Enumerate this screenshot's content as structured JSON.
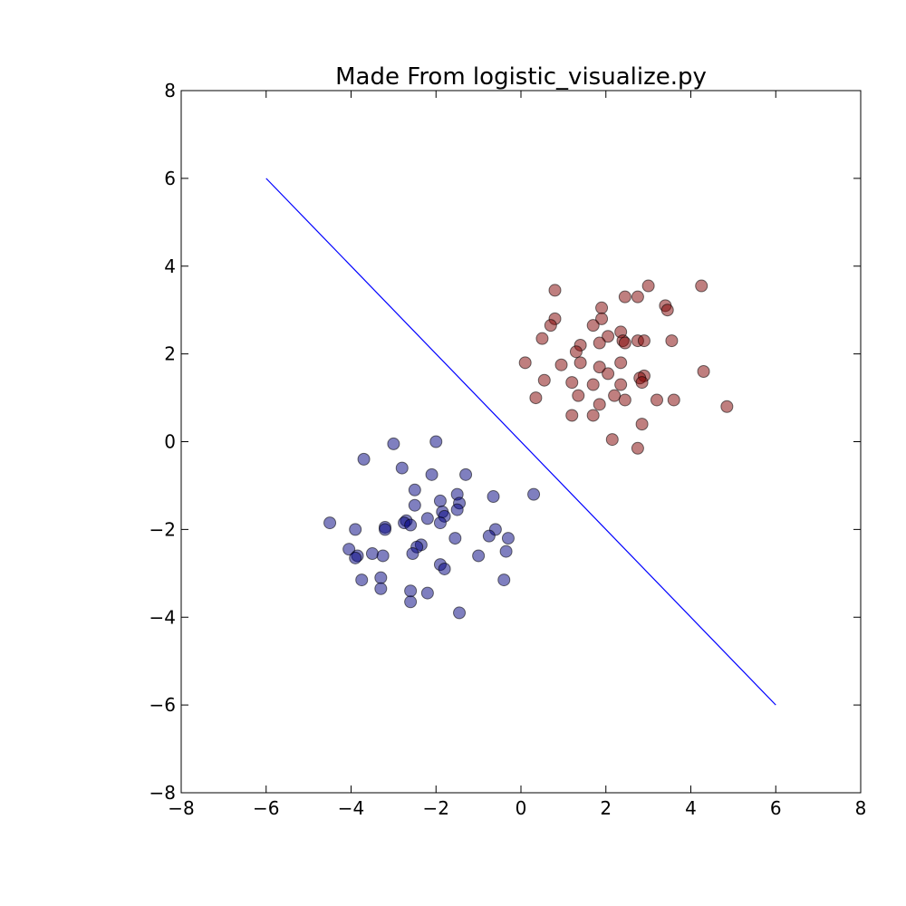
{
  "chart_data": {
    "type": "scatter",
    "title": "Made From logistic_visualize.py",
    "xlabel": "",
    "ylabel": "",
    "xlim": [
      -8,
      8
    ],
    "ylim": [
      -8,
      8
    ],
    "xticks": [
      -8,
      -6,
      -4,
      -2,
      0,
      2,
      4,
      6,
      8
    ],
    "yticks": [
      -8,
      -6,
      -4,
      -2,
      0,
      2,
      4,
      6,
      8
    ],
    "xtick_labels": [
      "−8",
      "−6",
      "−4",
      "−2",
      "0",
      "2",
      "4",
      "6",
      "8"
    ],
    "ytick_labels": [
      "−8",
      "−6",
      "−4",
      "−2",
      "0",
      "2",
      "4",
      "6",
      "8"
    ],
    "grid": false,
    "boundary_line": {
      "x": [
        -6,
        6
      ],
      "y": [
        6,
        -6
      ],
      "color": "#0000ff"
    },
    "series": [
      {
        "color": "#00007f",
        "points": [
          [
            -3.0,
            -0.05
          ],
          [
            -2.0,
            0.0
          ],
          [
            -3.7,
            -0.4
          ],
          [
            -2.8,
            -0.6
          ],
          [
            -2.1,
            -0.75
          ],
          [
            -1.3,
            -0.75
          ],
          [
            -2.5,
            -1.1
          ],
          [
            -0.65,
            -1.25
          ],
          [
            -1.5,
            -1.2
          ],
          [
            -1.9,
            -1.35
          ],
          [
            -1.45,
            -1.4
          ],
          [
            -2.5,
            -1.45
          ],
          [
            -1.5,
            -1.55
          ],
          [
            -1.85,
            -1.6
          ],
          [
            -1.8,
            -1.7
          ],
          [
            -2.2,
            -1.75
          ],
          [
            -1.9,
            -1.85
          ],
          [
            -2.7,
            -1.8
          ],
          [
            -2.75,
            -1.85
          ],
          [
            -4.5,
            -1.85
          ],
          [
            -3.2,
            -1.95
          ],
          [
            -2.6,
            -1.9
          ],
          [
            -3.2,
            -2.0
          ],
          [
            -3.9,
            -2.0
          ],
          [
            -0.6,
            -2.0
          ],
          [
            -0.75,
            -2.15
          ],
          [
            -1.55,
            -2.2
          ],
          [
            -0.3,
            -2.2
          ],
          [
            -2.35,
            -2.35
          ],
          [
            -2.45,
            -2.4
          ],
          [
            -4.05,
            -2.45
          ],
          [
            -0.35,
            -2.5
          ],
          [
            -3.5,
            -2.55
          ],
          [
            -2.55,
            -2.55
          ],
          [
            -3.85,
            -2.6
          ],
          [
            -3.25,
            -2.6
          ],
          [
            -1.0,
            -2.6
          ],
          [
            -3.9,
            -2.65
          ],
          [
            -1.9,
            -2.8
          ],
          [
            -1.8,
            -2.9
          ],
          [
            -3.3,
            -3.1
          ],
          [
            -3.75,
            -3.15
          ],
          [
            -0.4,
            -3.15
          ],
          [
            -3.3,
            -3.35
          ],
          [
            -2.6,
            -3.4
          ],
          [
            -2.2,
            -3.45
          ],
          [
            -2.6,
            -3.65
          ],
          [
            -1.45,
            -3.9
          ],
          [
            0.3,
            -1.2
          ]
        ]
      },
      {
        "color": "#7f0000",
        "points": [
          [
            3.0,
            3.55
          ],
          [
            4.25,
            3.55
          ],
          [
            0.8,
            3.45
          ],
          [
            2.45,
            3.3
          ],
          [
            2.75,
            3.3
          ],
          [
            3.4,
            3.1
          ],
          [
            1.9,
            3.05
          ],
          [
            3.45,
            3.0
          ],
          [
            0.8,
            2.8
          ],
          [
            1.9,
            2.8
          ],
          [
            0.7,
            2.65
          ],
          [
            1.7,
            2.65
          ],
          [
            2.35,
            2.5
          ],
          [
            2.05,
            2.4
          ],
          [
            0.5,
            2.35
          ],
          [
            2.4,
            2.3
          ],
          [
            2.45,
            2.25
          ],
          [
            2.75,
            2.3
          ],
          [
            2.9,
            2.3
          ],
          [
            3.55,
            2.3
          ],
          [
            1.85,
            2.25
          ],
          [
            1.4,
            2.2
          ],
          [
            1.3,
            2.05
          ],
          [
            0.1,
            1.8
          ],
          [
            1.4,
            1.8
          ],
          [
            0.95,
            1.75
          ],
          [
            2.35,
            1.8
          ],
          [
            1.85,
            1.7
          ],
          [
            4.3,
            1.6
          ],
          [
            2.05,
            1.55
          ],
          [
            2.9,
            1.5
          ],
          [
            0.55,
            1.4
          ],
          [
            2.8,
            1.45
          ],
          [
            2.85,
            1.35
          ],
          [
            1.2,
            1.35
          ],
          [
            1.7,
            1.3
          ],
          [
            2.35,
            1.3
          ],
          [
            2.2,
            1.05
          ],
          [
            1.35,
            1.05
          ],
          [
            0.35,
            1.0
          ],
          [
            2.45,
            0.95
          ],
          [
            3.2,
            0.95
          ],
          [
            3.6,
            0.95
          ],
          [
            1.85,
            0.85
          ],
          [
            4.85,
            0.8
          ],
          [
            1.2,
            0.6
          ],
          [
            1.7,
            0.6
          ],
          [
            2.85,
            0.4
          ],
          [
            2.15,
            0.05
          ],
          [
            2.75,
            -0.15
          ]
        ]
      }
    ]
  }
}
